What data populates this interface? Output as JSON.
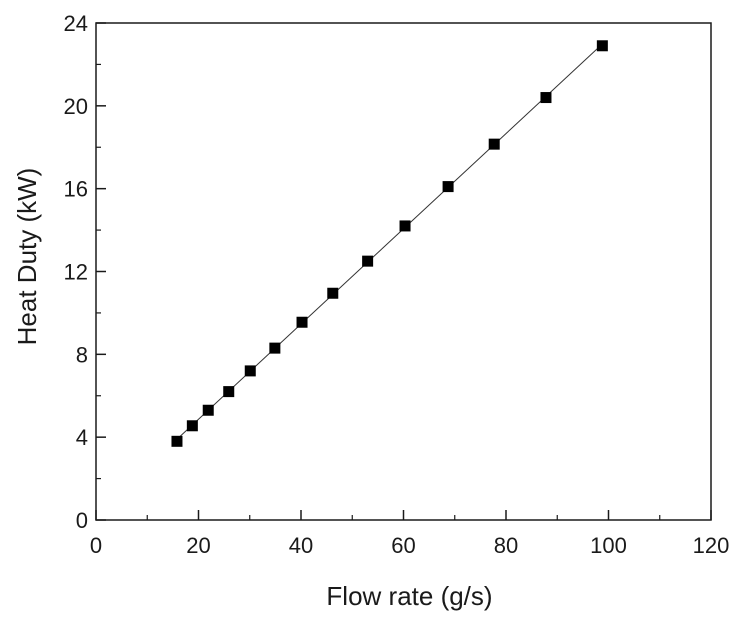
{
  "chart_data": {
    "type": "scatter",
    "title": "",
    "xlabel": "Flow rate (g/s)",
    "ylabel": "Heat Duty (kW)",
    "xlim": [
      0,
      120
    ],
    "ylim": [
      0,
      24
    ],
    "xticks": [
      0,
      20,
      40,
      60,
      80,
      100,
      120
    ],
    "yticks": [
      0,
      4,
      8,
      12,
      16,
      20,
      24
    ],
    "grid": false,
    "legend": "none",
    "series": [
      {
        "marker": "square",
        "color": "#000000",
        "fit_line": true,
        "fit_line_color": "#333333",
        "points": [
          {
            "x": 15.8,
            "y": 3.8
          },
          {
            "x": 18.8,
            "y": 4.55
          },
          {
            "x": 21.9,
            "y": 5.3
          },
          {
            "x": 25.9,
            "y": 6.2
          },
          {
            "x": 30.1,
            "y": 7.2
          },
          {
            "x": 34.9,
            "y": 8.3
          },
          {
            "x": 40.2,
            "y": 9.55
          },
          {
            "x": 46.2,
            "y": 10.95
          },
          {
            "x": 53.0,
            "y": 12.5
          },
          {
            "x": 60.3,
            "y": 14.2
          },
          {
            "x": 68.7,
            "y": 16.1
          },
          {
            "x": 77.7,
            "y": 18.15
          },
          {
            "x": 87.8,
            "y": 20.4
          },
          {
            "x": 98.8,
            "y": 22.9
          }
        ]
      }
    ]
  }
}
